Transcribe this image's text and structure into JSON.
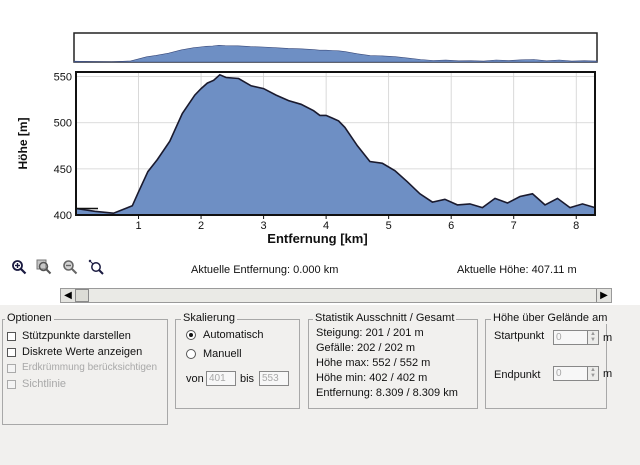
{
  "chart_data": {
    "type": "area",
    "xlabel": "Entfernung [km]",
    "ylabel": "Höhe [m]",
    "xlim": [
      0,
      8.3
    ],
    "ylim": [
      400,
      555
    ],
    "x_ticks": [
      1,
      2,
      3,
      4,
      5,
      6,
      7,
      8
    ],
    "y_ticks": [
      400,
      450,
      500,
      550
    ],
    "fill_color": "#6e8fc4",
    "line_color": "#1a1a2e",
    "grid": true,
    "x": [
      0,
      0.3,
      0.6,
      0.9,
      1.0,
      1.15,
      1.3,
      1.5,
      1.7,
      1.9,
      2.0,
      2.1,
      2.2,
      2.3,
      2.4,
      2.6,
      2.8,
      3.0,
      3.2,
      3.4,
      3.6,
      3.8,
      3.9,
      4.0,
      4.1,
      4.2,
      4.3,
      4.5,
      4.7,
      4.9,
      5.1,
      5.3,
      5.5,
      5.7,
      5.9,
      6.1,
      6.3,
      6.5,
      6.7,
      6.9,
      7.1,
      7.3,
      7.5,
      7.7,
      7.9,
      8.1,
      8.3
    ],
    "y": [
      407,
      404,
      402,
      410,
      425,
      447,
      460,
      480,
      510,
      530,
      537,
      543,
      546,
      552,
      549,
      548,
      540,
      537,
      530,
      524,
      520,
      513,
      508,
      508,
      505,
      502,
      495,
      475,
      458,
      456,
      448,
      436,
      423,
      414,
      417,
      411,
      412,
      408,
      418,
      413,
      420,
      423,
      411,
      418,
      408,
      412,
      408
    ]
  },
  "overview": {
    "fill_color": "#6e8fc4"
  },
  "toolbar": {
    "icons": [
      "zoom-in-icon",
      "zoom-select-icon",
      "zoom-out-icon",
      "zoom-reset-icon"
    ],
    "distance_text": "Aktuelle Entfernung: 0.000 km",
    "height_text": "Aktuelle Höhe: 407.11 m"
  },
  "optionen": {
    "title": "Optionen",
    "items": [
      {
        "label": "Stützpunkte darstellen",
        "enabled": true
      },
      {
        "label": "Diskrete Werte anzeigen",
        "enabled": true
      },
      {
        "label": "Erdkrümmung berücksichtigen",
        "enabled": false
      },
      {
        "label": "Sichtlinie",
        "enabled": false
      }
    ]
  },
  "skalierung": {
    "title": "Skalierung",
    "auto_label": "Automatisch",
    "manual_label": "Manuell",
    "von_label": "von",
    "bis_label": "bis",
    "von_value": "401",
    "bis_value": "553"
  },
  "statistik": {
    "title": "Statistik  Ausschnitt / Gesamt",
    "rows": [
      "Steigung: 201 / 201 m",
      "Gefälle: 202 / 202 m",
      "Höhe max: 552 / 552 m",
      "Höhe min: 402 / 402 m",
      "Entfernung: 8.309 / 8.309 km"
    ]
  },
  "gelaende": {
    "title": "Höhe über Gelände am",
    "start_label": "Startpunkt",
    "end_label": "Endpunkt",
    "start_value": "0",
    "end_value": "0",
    "unit": "m"
  }
}
